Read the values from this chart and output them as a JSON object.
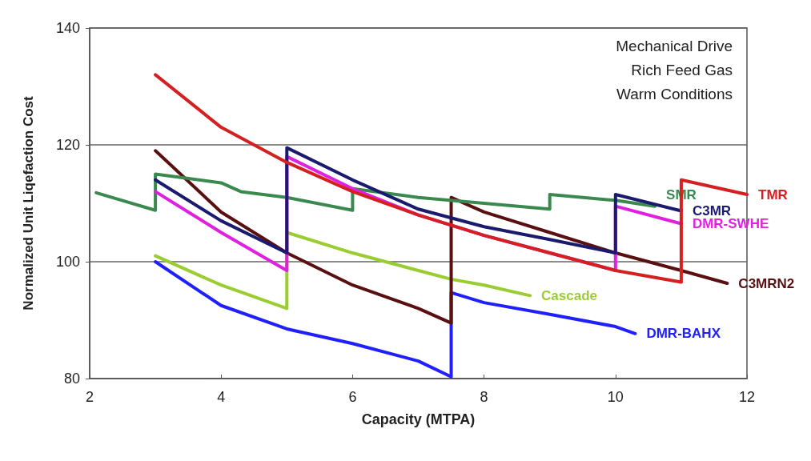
{
  "chart_data": {
    "type": "line",
    "xlabel": "Capacity (MTPA)",
    "ylabel": "Normalized Unit Liqefaction Cost",
    "xlim": [
      2,
      12
    ],
    "xticks": [
      2,
      4,
      6,
      8,
      10,
      12
    ],
    "ylim": [
      80,
      140
    ],
    "yticks": [
      80,
      100,
      120,
      140
    ],
    "grid": "y",
    "legend": false,
    "marker": "none",
    "line_style": "solid",
    "annotations": [
      "Mechanical Drive",
      "Rich Feed Gas",
      "Warm Conditions"
    ],
    "series": [
      {
        "name": "TMR",
        "color": "#d42020",
        "x": [
          3,
          4,
          5,
          6,
          7,
          8,
          9,
          10,
          11,
          11,
          12
        ],
        "values": [
          132,
          123,
          117,
          112,
          108,
          104.5,
          101.5,
          98.5,
          96.5,
          114,
          111.5
        ]
      },
      {
        "name": "C3MR",
        "color": "#1a1a6e",
        "x": [
          3,
          4,
          5,
          5,
          6,
          7,
          8,
          9,
          10,
          10,
          11
        ],
        "values": [
          114,
          107,
          101.5,
          119.5,
          114,
          109,
          106,
          103.8,
          101.5,
          111.5,
          108.7
        ]
      },
      {
        "name": "DMR-SWHE",
        "color": "#e020e0",
        "x": [
          3,
          4,
          5,
          5,
          6,
          7,
          8,
          9,
          10,
          10,
          11
        ],
        "values": [
          112,
          105,
          98.5,
          118,
          112.5,
          108,
          104.5,
          101.5,
          98.5,
          109.5,
          106.5
        ]
      },
      {
        "name": "SMR",
        "color": "#3a8a50",
        "x": [
          2.1,
          3,
          3,
          4,
          4.3,
          5,
          6,
          6,
          7,
          8,
          9,
          9,
          10,
          10.6
        ],
        "values": [
          111.8,
          108.8,
          115,
          113.5,
          112,
          111,
          108.8,
          112.5,
          111,
          110,
          109,
          111.5,
          110.5,
          109.5
        ]
      },
      {
        "name": "C3MRN2",
        "color": "#5a1010",
        "x": [
          3,
          4,
          5,
          6,
          7,
          7.5,
          7.5,
          8,
          9,
          10,
          11,
          11.7
        ],
        "values": [
          119,
          108.5,
          101.5,
          96,
          92,
          89.5,
          111,
          108.5,
          105,
          101.5,
          98.5,
          96.3
        ]
      },
      {
        "name": "Cascade",
        "color": "#9acd32",
        "x": [
          3,
          4,
          5,
          5,
          6,
          7,
          7.5,
          8,
          8.7
        ],
        "values": [
          101,
          96,
          92,
          105,
          101.5,
          98.5,
          97,
          96,
          94.2
        ]
      },
      {
        "name": "DMR-BAHX",
        "color": "#2020ff",
        "x": [
          3,
          4,
          5,
          6,
          7,
          7.5,
          7.5,
          8,
          9,
          10,
          10.3
        ],
        "values": [
          100,
          92.5,
          88.5,
          86,
          83,
          80.3,
          94.7,
          93,
          91,
          88.9,
          87.7
        ]
      }
    ]
  }
}
